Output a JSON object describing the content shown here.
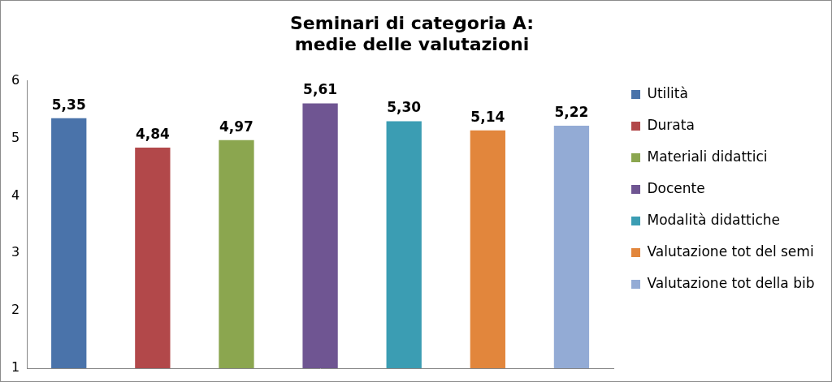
{
  "chart_data": {
    "type": "bar",
    "title": [
      "Seminari di categoria A:",
      "medie delle valutazioni"
    ],
    "categories": [
      "Utilità",
      "Durata",
      "Materiali didattici",
      "Docente",
      "Modalità didattiche",
      "Valutazione tot del seminario",
      "Valutazione tot della biblioteca"
    ],
    "values": [
      5.35,
      4.84,
      4.97,
      5.61,
      5.3,
      5.14,
      5.22
    ],
    "value_labels": [
      "5,35",
      "4,84",
      "4,97",
      "5,61",
      "5,30",
      "5,14",
      "5,22"
    ],
    "colors": [
      "#4a73aa",
      "#b2484a",
      "#8ba64f",
      "#6f5592",
      "#3b9db3",
      "#e2863c",
      "#93abd5"
    ],
    "ylim": [
      1,
      6
    ],
    "yticks": [
      1,
      2,
      3,
      4,
      5,
      6
    ],
    "grid": false,
    "legend": "right",
    "data_labels": true,
    "tick_labels": "y"
  }
}
